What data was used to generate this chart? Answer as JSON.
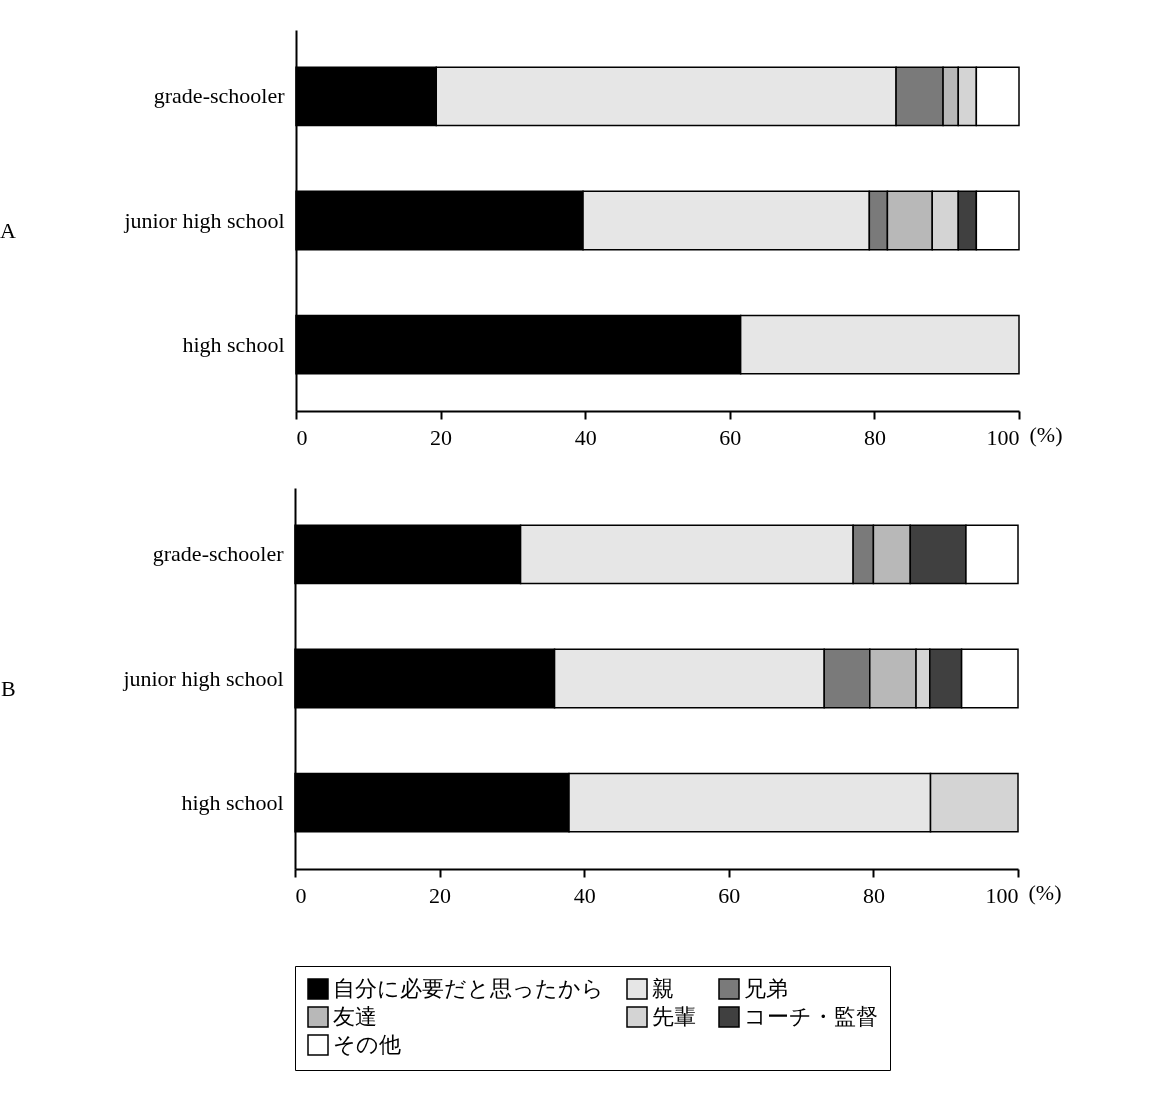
{
  "chart_data": [
    {
      "type": "bar",
      "title": "A",
      "orientation": "horizontal",
      "stacked": true,
      "xlabel": "(%)",
      "legend": false,
      "categories": [
        "grade-schooler",
        "junior high school",
        "high school"
      ],
      "xlim": [
        0,
        100
      ],
      "xticks": [
        0,
        20,
        40,
        60,
        80,
        100
      ],
      "grid": false,
      "series": [
        {
          "color": "#000000",
          "values": [
            19.4,
            39.7,
            61.5
          ]
        },
        {
          "color": "#e6e6e6",
          "values": [
            63.6,
            39.6,
            38.5
          ]
        },
        {
          "color": "#7a7a7a",
          "values": [
            6.5,
            2.5,
            null
          ]
        },
        {
          "color": "#b8b8b8",
          "values": [
            2.1,
            6.2,
            null
          ]
        },
        {
          "color": "#d4d4d4",
          "values": [
            2.5,
            3.6,
            null
          ]
        },
        {
          "color": "#404040",
          "values": [
            null,
            2.5,
            null
          ]
        },
        {
          "color": "#ffffff",
          "values": [
            5.9,
            5.9,
            null
          ]
        }
      ]
    },
    {
      "type": "bar",
      "title": "B",
      "orientation": "horizontal",
      "stacked": true,
      "xlabel": "(%)",
      "legend": "bottom",
      "categories": [
        "grade-schooler",
        "junior high school",
        "high school"
      ],
      "xlim": [
        0,
        100
      ],
      "xticks": [
        0,
        20,
        40,
        60,
        80,
        100
      ],
      "grid": false,
      "series": [
        {
          "name": "自分に必要だと思ったから",
          "color": "#000000",
          "values": [
            31.2,
            35.9,
            37.9
          ]
        },
        {
          "name": "親",
          "color": "#e6e6e6",
          "values": [
            46.0,
            37.3,
            50.0
          ]
        },
        {
          "name": "兄弟",
          "color": "#7a7a7a",
          "values": [
            2.8,
            6.3,
            null
          ]
        },
        {
          "name": "友達",
          "color": "#b8b8b8",
          "values": [
            5.1,
            6.4,
            null
          ]
        },
        {
          "name": "先輩",
          "color": "#d4d4d4",
          "values": [
            null,
            1.9,
            12.1
          ]
        },
        {
          "name": "コーチ・監督",
          "color": "#404040",
          "values": [
            7.7,
            4.4,
            null
          ]
        },
        {
          "name": "その他",
          "color": "#ffffff",
          "values": [
            7.2,
            7.8,
            null
          ]
        }
      ]
    }
  ]
}
